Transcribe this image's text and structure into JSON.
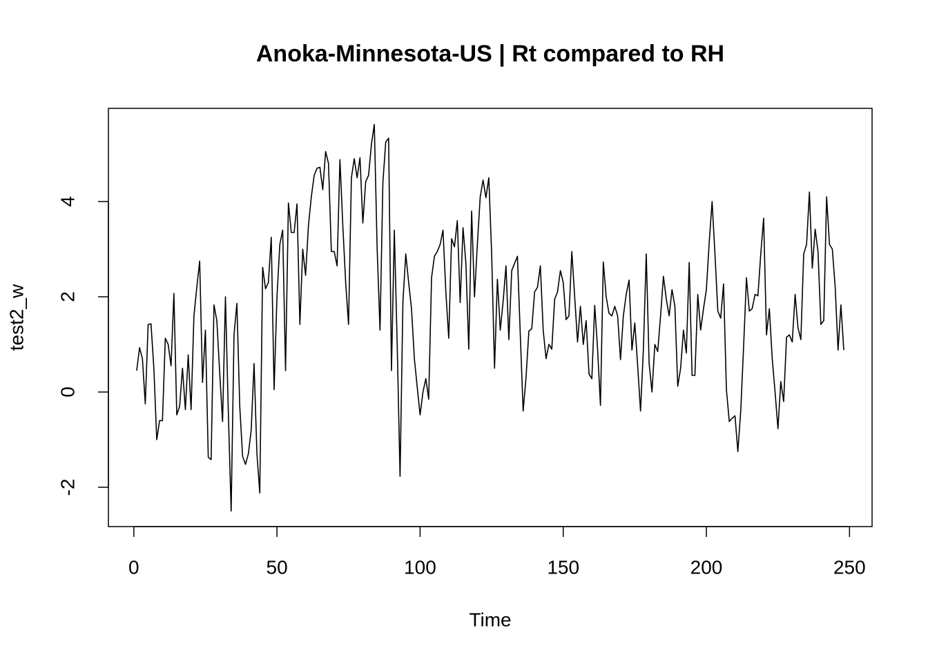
{
  "chart_data": {
    "type": "line",
    "title": "Anoka-Minnesota-US | Rt compared to RH",
    "x_label": "Time",
    "y_label": "test2_w",
    "xlim": [
      -8.88,
      257.88
    ],
    "ylim": [
      -2.826,
      5.957
    ],
    "xticks": [
      0,
      50,
      100,
      150,
      200,
      250
    ],
    "yticks": [
      -2,
      0,
      2,
      4
    ],
    "x": [
      1,
      2,
      3,
      4,
      5,
      6,
      7,
      8,
      9,
      10,
      11,
      12,
      13,
      14,
      15,
      16,
      17,
      18,
      19,
      20,
      21,
      22,
      23,
      24,
      25,
      26,
      27,
      28,
      29,
      30,
      31,
      32,
      33,
      34,
      35,
      36,
      37,
      38,
      39,
      40,
      41,
      42,
      43,
      44,
      45,
      46,
      47,
      48,
      49,
      50,
      51,
      52,
      53,
      54,
      55,
      56,
      57,
      58,
      59,
      60,
      61,
      62,
      63,
      64,
      65,
      66,
      67,
      68,
      69,
      70,
      71,
      72,
      73,
      74,
      75,
      76,
      77,
      78,
      79,
      80,
      81,
      82,
      83,
      84,
      85,
      86,
      87,
      88,
      89,
      90,
      91,
      92,
      93,
      94,
      95,
      96,
      97,
      98,
      99,
      100,
      101,
      102,
      103,
      104,
      105,
      106,
      107,
      108,
      109,
      110,
      111,
      112,
      113,
      114,
      115,
      116,
      117,
      118,
      119,
      120,
      121,
      122,
      123,
      124,
      125,
      126,
      127,
      128,
      129,
      130,
      131,
      132,
      133,
      134,
      135,
      136,
      137,
      138,
      139,
      140,
      141,
      142,
      143,
      144,
      145,
      146,
      147,
      148,
      149,
      150,
      151,
      152,
      153,
      154,
      155,
      156,
      157,
      158,
      159,
      160,
      161,
      162,
      163,
      164,
      165,
      166,
      167,
      168,
      169,
      170,
      171,
      172,
      173,
      174,
      175,
      176,
      177,
      178,
      179,
      180,
      181,
      182,
      183,
      184,
      185,
      186,
      187,
      188,
      189,
      190,
      191,
      192,
      193,
      194,
      195,
      196,
      197,
      198,
      199,
      200,
      201,
      202,
      203,
      204,
      205,
      206,
      207,
      208,
      209,
      210,
      211,
      212,
      213,
      214,
      215,
      216,
      217,
      218,
      219,
      220,
      221,
      222,
      223,
      224,
      225,
      226,
      227,
      228,
      229,
      230,
      231,
      232,
      233,
      234,
      235,
      236,
      237,
      238,
      239,
      240,
      241,
      242,
      243,
      244,
      245,
      246,
      247,
      248
    ],
    "series": [
      {
        "color": "#000000",
        "values": [
          0.45,
          0.93,
          0.7,
          -0.25,
          1.42,
          1.43,
          0.5,
          -1.0,
          -0.6,
          -0.6,
          1.13,
          1.0,
          0.55,
          2.07,
          -0.48,
          -0.3,
          0.5,
          -0.37,
          0.78,
          -0.37,
          1.6,
          2.2,
          2.75,
          0.2,
          1.3,
          -1.37,
          -1.42,
          1.83,
          1.5,
          0.4,
          -0.62,
          2.0,
          -0.4,
          -2.5,
          1.2,
          1.86,
          -0.3,
          -1.35,
          -1.52,
          -1.3,
          -0.8,
          0.6,
          -1.3,
          -2.12,
          2.62,
          2.17,
          2.3,
          3.25,
          0.05,
          2.0,
          3.1,
          3.4,
          0.45,
          3.97,
          3.35,
          3.35,
          3.95,
          1.42,
          3.0,
          2.45,
          3.5,
          4.1,
          4.55,
          4.7,
          4.72,
          4.25,
          5.05,
          4.8,
          2.95,
          2.95,
          2.65,
          4.88,
          3.5,
          2.3,
          1.42,
          4.5,
          4.9,
          4.5,
          4.92,
          3.55,
          4.42,
          4.55,
          5.2,
          5.62,
          3.0,
          1.3,
          4.4,
          5.25,
          5.33,
          0.45,
          3.4,
          1.0,
          -1.77,
          1.9,
          2.9,
          2.3,
          1.75,
          0.7,
          0.1,
          -0.48,
          0.0,
          0.28,
          -0.15,
          2.4,
          2.85,
          2.95,
          3.1,
          3.4,
          2.1,
          1.13,
          3.22,
          3.05,
          3.6,
          1.88,
          3.45,
          2.7,
          0.9,
          3.8,
          2.0,
          3.1,
          4.1,
          4.45,
          4.08,
          4.5,
          2.9,
          0.5,
          2.37,
          1.3,
          1.9,
          2.65,
          1.1,
          2.55,
          2.7,
          2.85,
          1.2,
          -0.4,
          0.3,
          1.28,
          1.33,
          2.1,
          2.2,
          2.65,
          1.3,
          0.7,
          1.0,
          0.9,
          1.95,
          2.1,
          2.55,
          2.3,
          1.52,
          1.6,
          2.95,
          2.0,
          1.05,
          1.8,
          1.0,
          1.5,
          0.38,
          0.28,
          1.82,
          0.9,
          -0.28,
          2.73,
          2.0,
          1.65,
          1.6,
          1.8,
          1.6,
          0.68,
          1.6,
          2.05,
          2.35,
          0.88,
          1.45,
          0.55,
          -0.4,
          0.9,
          2.9,
          0.6,
          0.0,
          1.0,
          0.85,
          1.6,
          2.43,
          1.95,
          1.6,
          2.15,
          1.8,
          0.12,
          0.5,
          1.3,
          0.82,
          2.72,
          0.35,
          0.35,
          2.05,
          1.3,
          1.75,
          2.15,
          3.15,
          4.0,
          2.9,
          1.7,
          1.55,
          2.27,
          0.05,
          -0.62,
          -0.55,
          -0.5,
          -1.25,
          -0.4,
          0.95,
          2.4,
          1.7,
          1.75,
          2.05,
          2.02,
          2.9,
          3.65,
          1.2,
          1.75,
          0.7,
          0.0,
          -0.77,
          0.22,
          -0.2,
          1.15,
          1.2,
          1.05,
          2.05,
          1.35,
          1.1,
          2.9,
          3.1,
          4.2,
          2.6,
          3.42,
          2.95,
          1.42,
          1.5,
          4.1,
          3.1,
          3.0,
          2.2,
          0.88,
          1.83,
          0.88
        ]
      }
    ]
  }
}
